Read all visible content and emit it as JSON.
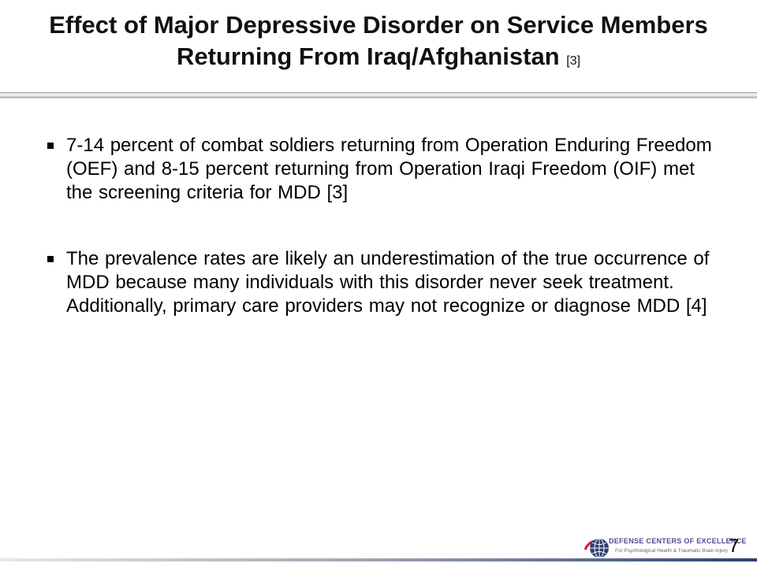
{
  "slide": {
    "title": "Effect of Major Depressive Disorder on Service Members Returning From Iraq/Afghanistan",
    "title_ref": "[3]",
    "bullets": [
      {
        "text": "7-14 percent of combat soldiers returning from Operation Enduring Freedom (OEF) and 8-15 percent returning from Operation Iraqi Freedom (OIF) met the screening criteria for MDD [3]"
      },
      {
        "text": "The prevalence rates are likely an underestimation of the true occurrence of MDD because many individuals with this disorder never seek treatment. Additionally, primary care providers may not recognize or diagnose MDD [4]"
      }
    ],
    "page_number": "7"
  },
  "footer": {
    "logo_text": "DEFENSE CENTERS OF EXCELLENCE",
    "logo_subtext": "For Psychological Health & Traumatic Brain Injury"
  },
  "colors": {
    "logo_red": "#c8202e",
    "logo_blue": "#2d3f72",
    "bullet": "#000000"
  }
}
